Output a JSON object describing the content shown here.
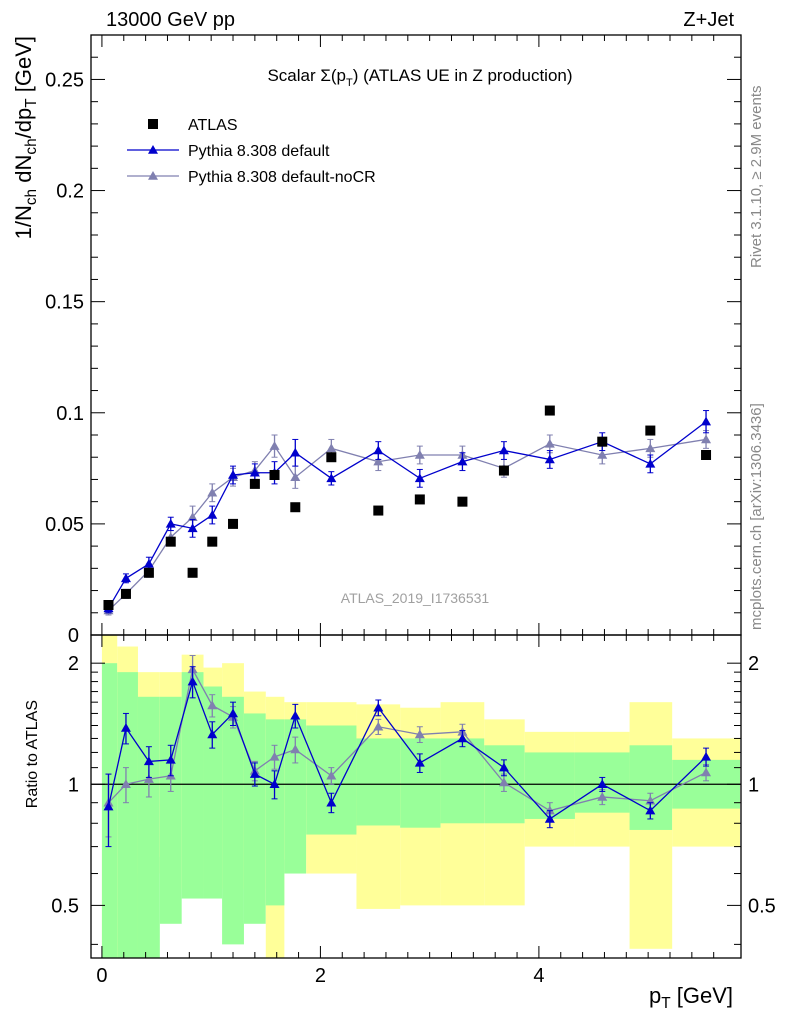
{
  "header": {
    "left": "13000 GeV pp",
    "right": "Z+Jet"
  },
  "side_labels": {
    "rivet": "Rivet 3.1.10, ≥ 2.9M events",
    "mcplots": "mcplots.cern.ch [arXiv:1306.3436]"
  },
  "chart_data": {
    "type": "scatter",
    "title": "Scalar Σ(p_T) (ATLAS UE in Z production)",
    "analysis_label": "ATLAS_2019_I1736531",
    "xlabel": "p_T [GeV]",
    "xlim": [
      -0.1,
      5.85
    ],
    "xticks": [
      0,
      2,
      4
    ],
    "grid": false,
    "legend_position": "top-left",
    "legend": [
      {
        "label": "ATLAS",
        "marker": "square",
        "color": "#000000"
      },
      {
        "label": "Pythia 8.308 default",
        "marker": "triangle",
        "color": "#0000cc"
      },
      {
        "label": "Pythia 8.308 default-noCR",
        "marker": "triangle",
        "color": "#8080b0"
      }
    ],
    "main": {
      "ylabel": "1/N_ch dN_ch/dp_T [GeV]",
      "ylim": [
        0,
        0.27
      ],
      "yticks": [
        0.05,
        0.1,
        0.15,
        0.2,
        0.25
      ],
      "yticklabels": [
        "0.05",
        "0.1",
        "0.15",
        "0.2",
        "0.25"
      ],
      "atlas": {
        "x": [
          0.06,
          0.22,
          0.43,
          0.63,
          0.83,
          1.01,
          1.2,
          1.4,
          1.58,
          1.77,
          2.1,
          2.53,
          2.91,
          3.3,
          3.68,
          4.1,
          4.58,
          5.02,
          5.53
        ],
        "y": [
          0.0135,
          0.0185,
          0.028,
          0.042,
          0.028,
          0.042,
          0.05,
          0.068,
          0.072,
          0.0575,
          0.08,
          0.056,
          0.061,
          0.06,
          0.074,
          0.101,
          0.087,
          0.092,
          0.081
        ]
      },
      "series": [
        {
          "name": "Pythia 8.308 default",
          "color": "#0000cc",
          "x": [
            0.06,
            0.22,
            0.43,
            0.63,
            0.83,
            1.01,
            1.2,
            1.4,
            1.58,
            1.77,
            2.1,
            2.53,
            2.91,
            3.3,
            3.68,
            4.1,
            4.58,
            5.02,
            5.53
          ],
          "y": [
            0.012,
            0.0255,
            0.032,
            0.05,
            0.048,
            0.054,
            0.072,
            0.073,
            0.073,
            0.082,
            0.0705,
            0.083,
            0.0705,
            0.078,
            0.083,
            0.079,
            0.087,
            0.077,
            0.096
          ],
          "err": [
            0.002,
            0.002,
            0.003,
            0.003,
            0.004,
            0.004,
            0.004,
            0.004,
            0.005,
            0.006,
            0.003,
            0.004,
            0.004,
            0.004,
            0.004,
            0.004,
            0.004,
            0.004,
            0.005
          ]
        },
        {
          "name": "Pythia 8.308 default-noCR",
          "color": "#8080b0",
          "x": [
            0.06,
            0.22,
            0.43,
            0.63,
            0.83,
            1.01,
            1.2,
            1.4,
            1.58,
            1.77,
            2.1,
            2.53,
            2.91,
            3.3,
            3.68,
            4.1,
            4.58,
            5.02,
            5.53
          ],
          "y": [
            0.011,
            0.0185,
            0.029,
            0.044,
            0.053,
            0.064,
            0.071,
            0.074,
            0.085,
            0.071,
            0.084,
            0.078,
            0.081,
            0.081,
            0.075,
            0.086,
            0.081,
            0.084,
            0.088
          ],
          "err": [
            0.002,
            0.002,
            0.003,
            0.003,
            0.005,
            0.004,
            0.004,
            0.004,
            0.005,
            0.005,
            0.004,
            0.004,
            0.004,
            0.004,
            0.004,
            0.004,
            0.004,
            0.004,
            0.004
          ]
        }
      ]
    },
    "ratio": {
      "ylabel": "Ratio to ATLAS",
      "ylim": [
        0.37,
        2.35
      ],
      "log_scale": true,
      "yticks": [
        0.5,
        1,
        2
      ],
      "yticklabels": [
        "0.5",
        "1",
        "2"
      ],
      "bin_edges": [
        0.0,
        0.14,
        0.33,
        0.53,
        0.73,
        0.93,
        1.1,
        1.3,
        1.5,
        1.67,
        1.87,
        2.33,
        2.73,
        3.1,
        3.5,
        3.87,
        4.33,
        4.83,
        5.22,
        5.85
      ],
      "band_green": [
        [
          0.33,
          2.0
        ],
        [
          0.36,
          1.9
        ],
        [
          0.33,
          1.65
        ],
        [
          0.45,
          1.65
        ],
        [
          0.52,
          1.9
        ],
        [
          0.52,
          1.75
        ],
        [
          0.4,
          1.65
        ],
        [
          0.45,
          1.5
        ],
        [
          0.5,
          1.45
        ],
        [
          0.6,
          1.45
        ],
        [
          0.75,
          1.4
        ],
        [
          0.79,
          1.3
        ],
        [
          0.78,
          1.3
        ],
        [
          0.8,
          1.3
        ],
        [
          0.8,
          1.25
        ],
        [
          0.82,
          1.2
        ],
        [
          0.85,
          1.2
        ],
        [
          0.77,
          1.25
        ],
        [
          0.87,
          1.15
        ]
      ],
      "band_yellow": [
        [
          0.33,
          2.4
        ],
        [
          0.33,
          2.2
        ],
        [
          0.6,
          1.9
        ],
        [
          0.66,
          1.9
        ],
        [
          0.55,
          2.1
        ],
        [
          0.55,
          1.95
        ],
        [
          0.55,
          2.0
        ],
        [
          0.55,
          1.7
        ],
        [
          0.33,
          1.65
        ],
        [
          0.65,
          1.6
        ],
        [
          0.6,
          1.6
        ],
        [
          0.49,
          1.58
        ],
        [
          0.5,
          1.55
        ],
        [
          0.5,
          1.6
        ],
        [
          0.5,
          1.45
        ],
        [
          0.7,
          1.35
        ],
        [
          0.7,
          1.35
        ],
        [
          0.39,
          1.6
        ],
        [
          0.7,
          1.3
        ]
      ],
      "series": [
        {
          "name": "Pythia 8.308 default",
          "color": "#0000cc",
          "y": [
            0.88,
            1.38,
            1.14,
            1.15,
            1.8,
            1.33,
            1.5,
            1.06,
            1.0,
            1.48,
            0.9,
            1.55,
            1.13,
            1.3,
            1.1,
            0.82,
            1.0,
            0.86,
            1.17
          ],
          "err": [
            0.18,
            0.12,
            0.1,
            0.1,
            0.16,
            0.1,
            0.1,
            0.07,
            0.08,
            0.1,
            0.05,
            0.07,
            0.06,
            0.06,
            0.05,
            0.04,
            0.04,
            0.04,
            0.06
          ]
        },
        {
          "name": "Pythia 8.308 default-noCR",
          "color": "#8080b0",
          "y": [
            0.9,
            1.0,
            1.03,
            1.05,
            1.93,
            1.57,
            1.47,
            1.08,
            1.17,
            1.22,
            1.05,
            1.39,
            1.33,
            1.35,
            1.01,
            0.86,
            0.93,
            0.91,
            1.07
          ],
          "err": [
            0.16,
            0.1,
            0.1,
            0.09,
            0.16,
            0.1,
            0.09,
            0.06,
            0.08,
            0.09,
            0.05,
            0.06,
            0.06,
            0.06,
            0.05,
            0.04,
            0.04,
            0.04,
            0.05
          ]
        }
      ]
    }
  }
}
